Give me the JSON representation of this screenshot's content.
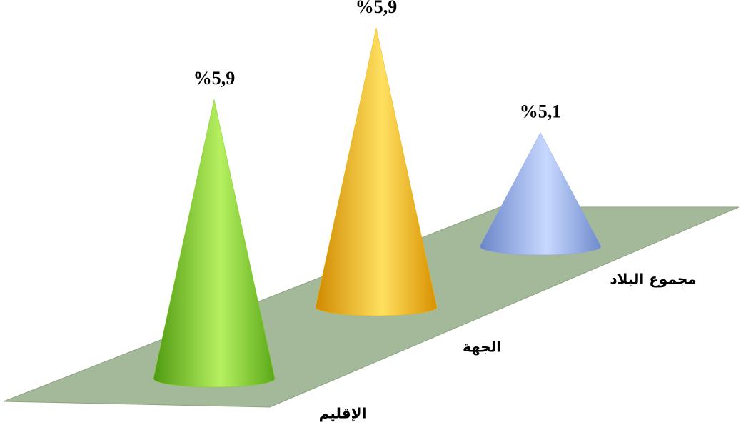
{
  "chart_data": {
    "type": "cone",
    "categories": [
      "الإقليم",
      "الجهة",
      "مجموع البلاد"
    ],
    "values": [
      5.9,
      5.9,
      5.1
    ],
    "value_labels": [
      "%5,9",
      "%5,9",
      "%5,1"
    ],
    "colors": [
      "#7ed321",
      "#f5b800",
      "#8ea6e0"
    ],
    "ylim": [
      4.55,
      6.0
    ]
  }
}
